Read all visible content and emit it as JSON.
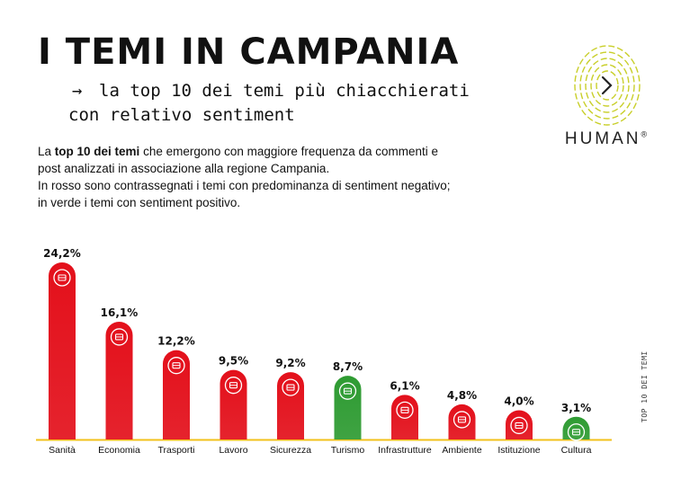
{
  "header": {
    "title": "I TEMI IN CAMPANIA",
    "subtitle_arrow": "→",
    "subtitle_line1": "la top 10 dei temi più chiacchierati",
    "subtitle_line2": "con relativo sentiment"
  },
  "description": {
    "part1": "La ",
    "bold": "top 10 dei temi",
    "part2": " che emergono con maggiore frequenza da commenti e post analizzati in associazione alla regione Campania.",
    "line2": "In rosso sono contrassegnati i temi con predominanza di sentiment negativo; in verde i temi con sentiment positivo."
  },
  "brand": {
    "name": "HUMAN",
    "mark": "®"
  },
  "side_label": "TOP 10 DEI TEMI",
  "colors": {
    "negative": "#e3101b",
    "positive": "#2e9b32",
    "baseline": "#f2c21b",
    "logo": "#c9cf2a"
  },
  "chart_data": {
    "type": "bar",
    "categories": [
      "Sanità",
      "Economia",
      "Trasporti",
      "Lavoro",
      "Sicurezza",
      "Turismo",
      "Infrastrutture",
      "Ambiente",
      "Istituzione",
      "Cultura"
    ],
    "values": [
      24.2,
      16.1,
      12.2,
      9.5,
      9.2,
      8.7,
      6.1,
      4.8,
      4.0,
      3.1
    ],
    "value_labels": [
      "24,2%",
      "16,1%",
      "12,2%",
      "9,5%",
      "9,2%",
      "8,7%",
      "6,1%",
      "4,8%",
      "4,0%",
      "3,1%"
    ],
    "sentiment": [
      "negative",
      "negative",
      "negative",
      "negative",
      "negative",
      "positive",
      "negative",
      "negative",
      "negative",
      "positive"
    ],
    "icons": [
      "health-icon",
      "coins-icon",
      "train-icon",
      "briefcase-icon",
      "shield-icon",
      "map-pin-icon",
      "construction-icon",
      "plant-hand-icon",
      "network-icon",
      "theater-icon"
    ],
    "ylim": [
      0,
      25
    ],
    "grid": false,
    "legend": "none"
  }
}
